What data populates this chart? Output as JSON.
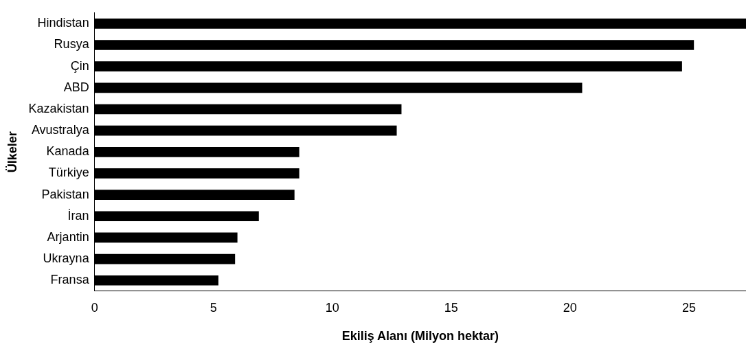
{
  "chart_data": {
    "type": "bar",
    "orientation": "horizontal",
    "xlabel": "Ekiliş Alanı (Milyon hektar)",
    "ylabel": "Ülkeler",
    "categories": [
      "Hindistan",
      "Rusya",
      "Çin",
      "ABD",
      "Kazakistan",
      "Avustralya",
      "Kanada",
      "Türkiye",
      "Pakistan",
      "İran",
      "Arjantin",
      "Ukrayna",
      "Fransa"
    ],
    "values": [
      27.4,
      25.2,
      24.7,
      20.5,
      12.9,
      12.7,
      8.6,
      8.6,
      8.4,
      6.9,
      6.0,
      5.9,
      5.2
    ],
    "color": "#000000",
    "xlim": [
      0,
      27.4
    ],
    "xticks": [
      0,
      5,
      10,
      15,
      20,
      25
    ],
    "grid": false,
    "legend": false
  }
}
